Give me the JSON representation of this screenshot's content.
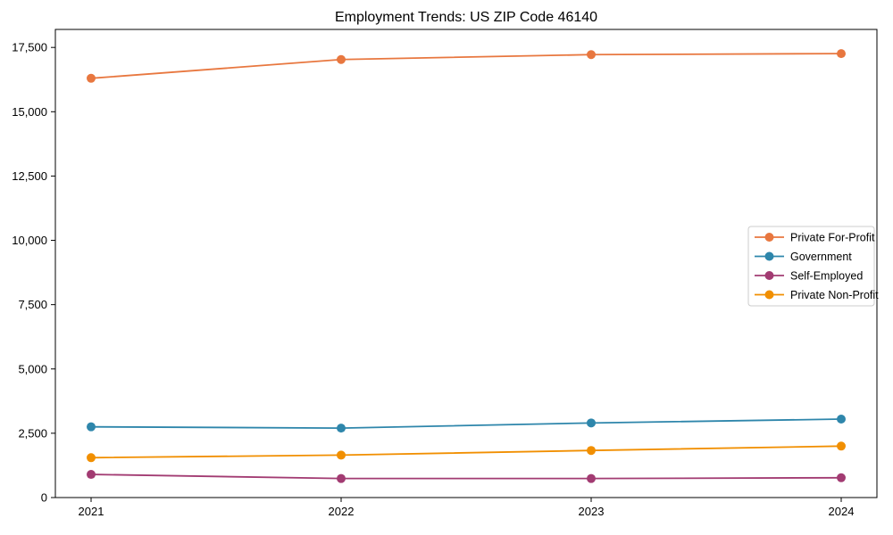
{
  "figure": {
    "background": "#ffffff",
    "spine_color": "#000000",
    "text_color": "#000000"
  },
  "chart_data": {
    "type": "line",
    "title": "Employment Trends: US ZIP Code 46140",
    "xlabel": "",
    "ylabel": "",
    "x": [
      2021,
      2022,
      2023,
      2024
    ],
    "x_tick_labels": [
      "2021",
      "2022",
      "2023",
      "2024"
    ],
    "y_ticks": [
      0,
      2500,
      5000,
      7500,
      10000,
      12500,
      15000,
      17500
    ],
    "y_tick_labels": [
      "0",
      "2,500",
      "5,000",
      "7,500",
      "10,000",
      "12,500",
      "15,000",
      "17,500"
    ],
    "ylim": [
      0,
      18200
    ],
    "grid": false,
    "legend_position": "center right",
    "marker": "circle",
    "series": [
      {
        "name": "Private For-Profit",
        "color": "#E8773F",
        "values": [
          16300,
          17030,
          17220,
          17260
        ]
      },
      {
        "name": "Government",
        "color": "#2E86AB",
        "values": [
          2750,
          2700,
          2900,
          3050
        ]
      },
      {
        "name": "Self-Employed",
        "color": "#A23B72",
        "values": [
          900,
          740,
          740,
          770
        ]
      },
      {
        "name": "Private Non-Profit",
        "color": "#F18F01",
        "values": [
          1550,
          1650,
          1830,
          2000
        ]
      }
    ]
  }
}
